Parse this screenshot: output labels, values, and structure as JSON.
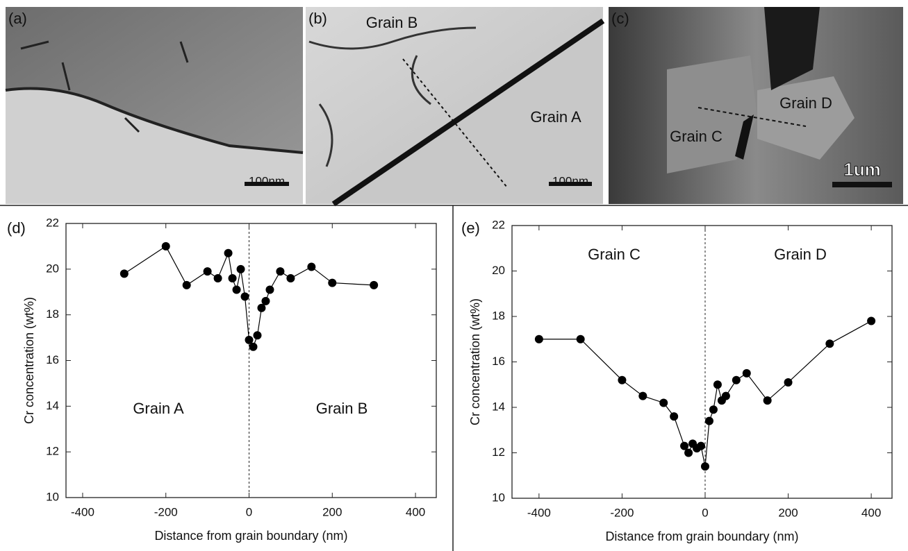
{
  "panels": [
    {
      "label": "(a)",
      "scale_bar": "100nm"
    },
    {
      "label": "(b)",
      "grains": [
        "Grain B",
        "Grain A"
      ],
      "scale_bar": "100nm"
    },
    {
      "label": "(c)",
      "grains": [
        "Grain D",
        "Grain C"
      ],
      "scale_bar": "1um"
    }
  ],
  "chart_data": [
    {
      "type": "line",
      "panel_label": "(d)",
      "x_label": "Distance from grain boundary (nm)",
      "y_label": "Cr concentration (wt%)",
      "annotations": [
        "Grain A",
        "Grain B"
      ],
      "x": [
        -300,
        -200,
        -150,
        -100,
        -75,
        -50,
        -40,
        -30,
        -20,
        -10,
        0,
        10,
        20,
        30,
        40,
        50,
        75,
        100,
        150,
        200,
        300
      ],
      "values": [
        19.8,
        21.0,
        19.3,
        19.9,
        19.6,
        20.7,
        19.6,
        19.1,
        20.0,
        18.8,
        16.9,
        16.6,
        17.1,
        18.3,
        18.6,
        19.1,
        19.9,
        19.6,
        20.1,
        19.4,
        19.3
      ],
      "color": "#000000",
      "xlim": [
        -440,
        450
      ],
      "xticks": [
        -400,
        -200,
        0,
        200,
        400
      ],
      "ylim": [
        10,
        22
      ],
      "yticks": [
        10,
        12,
        14,
        16,
        18,
        20,
        22
      ]
    },
    {
      "type": "line",
      "panel_label": "(e)",
      "x_label": "Distance from grain boundary (nm)",
      "y_label": "Cr concentration (wt%)",
      "annotations": [
        "Grain C",
        "Grain D"
      ],
      "x": [
        -400,
        -300,
        -200,
        -150,
        -100,
        -75,
        -50,
        -40,
        -30,
        -20,
        -10,
        0,
        10,
        20,
        30,
        40,
        50,
        75,
        100,
        150,
        200,
        300,
        400
      ],
      "values": [
        17.0,
        17.0,
        15.2,
        14.5,
        14.2,
        13.6,
        12.3,
        12.0,
        12.4,
        12.2,
        12.3,
        11.4,
        13.4,
        13.9,
        15.0,
        14.3,
        14.5,
        15.2,
        15.5,
        14.3,
        15.1,
        16.8,
        17.8
      ],
      "color": "#000000",
      "xlim": [
        -465,
        450
      ],
      "xticks": [
        -400,
        -200,
        0,
        200,
        400
      ],
      "ylim": [
        10,
        22
      ],
      "yticks": [
        10,
        12,
        14,
        16,
        18,
        20,
        22
      ]
    }
  ]
}
